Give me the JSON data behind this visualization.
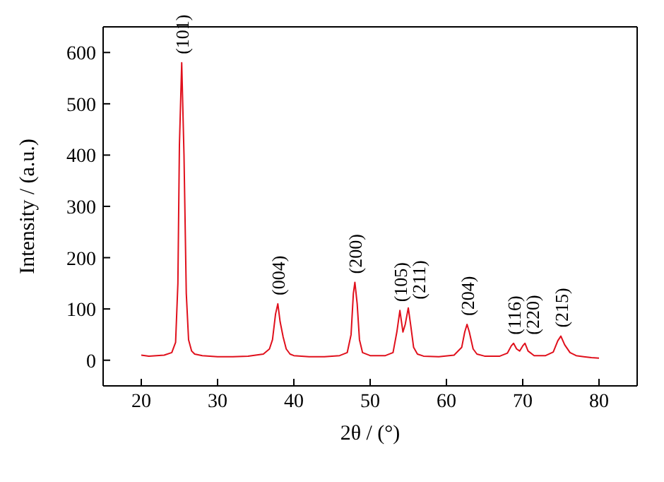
{
  "chart_data": {
    "type": "line",
    "xlabel": "2θ / (°)",
    "ylabel": "Intensity / (a.u.)",
    "xlim": [
      15,
      85
    ],
    "xticks": [
      20,
      30,
      40,
      50,
      60,
      70,
      80
    ],
    "ylim": [
      -50,
      650
    ],
    "yticks": [
      0,
      100,
      200,
      300,
      400,
      500,
      600
    ],
    "grid": false,
    "marker": "none",
    "line_style": "solid",
    "series": [
      {
        "color": "#e0101c",
        "x": [
          20,
          21,
          22,
          23,
          24,
          24.5,
          24.8,
          25.0,
          25.3,
          25.6,
          25.9,
          26.2,
          26.6,
          27,
          28,
          30,
          32,
          34,
          36,
          36.8,
          37.2,
          37.6,
          37.9,
          38.2,
          38.6,
          39,
          39.5,
          40,
          42,
          44,
          46,
          47,
          47.5,
          47.8,
          48.0,
          48.3,
          48.6,
          49,
          50,
          52,
          53,
          53.5,
          53.9,
          54.3,
          54.6,
          55.0,
          55.3,
          55.7,
          56.2,
          57,
          59,
          61,
          62,
          62.4,
          62.7,
          63.0,
          63.5,
          64,
          65,
          67,
          68,
          68.5,
          68.8,
          69.2,
          69.6,
          70.0,
          70.3,
          70.7,
          71.5,
          73,
          74,
          74.6,
          75.0,
          75.5,
          76.2,
          77,
          78,
          79,
          80
        ],
        "values": [
          10,
          8,
          9,
          10,
          15,
          35,
          150,
          420,
          580,
          400,
          130,
          40,
          18,
          12,
          9,
          7,
          7,
          8,
          12,
          22,
          40,
          90,
          110,
          75,
          45,
          22,
          12,
          9,
          7,
          7,
          9,
          15,
          50,
          130,
          152,
          110,
          40,
          15,
          9,
          9,
          15,
          55,
          97,
          55,
          70,
          102,
          70,
          25,
          12,
          8,
          7,
          10,
          25,
          55,
          70,
          55,
          22,
          12,
          8,
          8,
          14,
          28,
          33,
          22,
          18,
          28,
          33,
          18,
          9,
          9,
          16,
          38,
          47,
          30,
          15,
          9,
          7,
          5,
          4
        ]
      }
    ],
    "annotations": [
      {
        "text": "(101)",
        "x": 25.3,
        "y": 580
      },
      {
        "text": "(004)",
        "x": 37.9,
        "y": 110
      },
      {
        "text": "(200)",
        "x": 48.0,
        "y": 152
      },
      {
        "text": "(105)",
        "x": 53.9,
        "y": 97
      },
      {
        "text": "(211)",
        "x": 55.0,
        "y": 102
      },
      {
        "text": "(204)",
        "x": 62.7,
        "y": 70
      },
      {
        "text": "(116)",
        "x": 68.8,
        "y": 33
      },
      {
        "text": "(220)",
        "x": 70.3,
        "y": 33
      },
      {
        "text": "(215)",
        "x": 75.0,
        "y": 47
      }
    ]
  }
}
